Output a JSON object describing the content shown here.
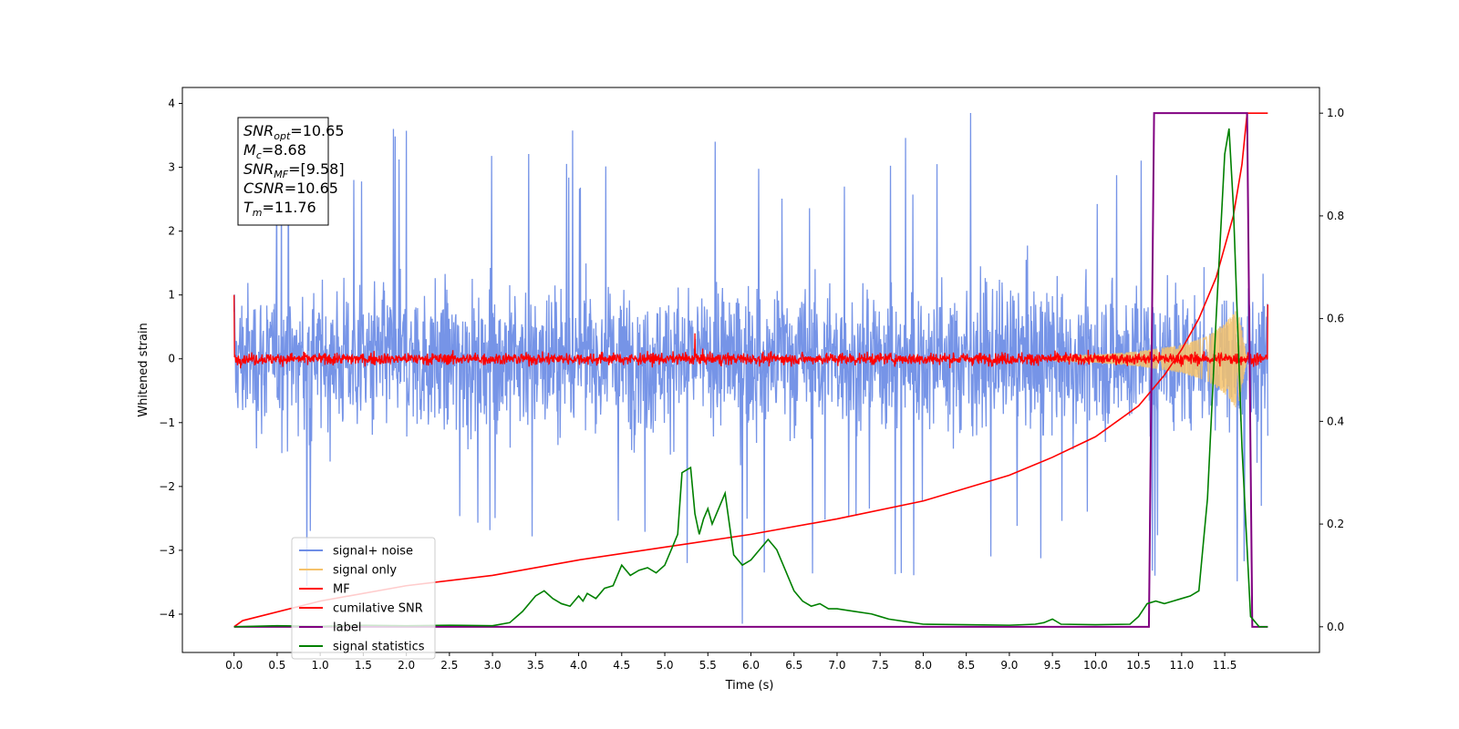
{
  "chart_data": {
    "type": "line",
    "xlabel": "Time (s)",
    "ylabel": "Whitened strain",
    "xlim": [
      -0.6,
      12.6
    ],
    "ylim": [
      -4.6,
      4.25
    ],
    "y2lim": [
      -0.05,
      1.05
    ],
    "x_ticks": [
      "0.0",
      "0.5",
      "1.0",
      "1.5",
      "2.0",
      "2.5",
      "3.0",
      "3.5",
      "4.0",
      "4.5",
      "5.0",
      "5.5",
      "6.0",
      "6.5",
      "7.0",
      "7.5",
      "8.0",
      "8.5",
      "9.0",
      "9.5",
      "10.0",
      "10.5",
      "11.0",
      "11.5"
    ],
    "y_ticks": [
      "4",
      "3",
      "2",
      "1",
      "0",
      "−1",
      "−2",
      "−3",
      "−4"
    ],
    "y2_ticks": [
      "1.0",
      "0.8",
      "0.6",
      "0.4",
      "0.2",
      "0.0"
    ],
    "info_box": [
      {
        "main": "SNR",
        "sub": "opt",
        "value": "=10.65"
      },
      {
        "main": "M",
        "sub": "c",
        "value": "=8.68"
      },
      {
        "main": "SNR",
        "sub": "MF",
        "value": "=[9.58]"
      },
      {
        "main": "CSNR",
        "sub": "",
        "value": "=10.65"
      },
      {
        "main": "T",
        "sub": "m",
        "value": "=11.76"
      }
    ],
    "legend_position": "lower-left",
    "series": [
      {
        "name": "signal+ noise",
        "color": "#6f8ee6",
        "description": "noise amplitude approx ±1.5 with spikes up to 3.85 and down to -4.15, t = 0 to 12"
      },
      {
        "name": "signal only",
        "color": "#f5c26b",
        "chirp_envelope": [
          [
            9.5,
            0.03
          ],
          [
            10.0,
            0.06
          ],
          [
            10.5,
            0.12
          ],
          [
            11.0,
            0.22
          ],
          [
            11.3,
            0.35
          ],
          [
            11.5,
            0.55
          ],
          [
            11.65,
            0.8
          ],
          [
            11.76,
            0.0
          ]
        ]
      },
      {
        "name": "MF",
        "color": "#ff0000",
        "baseline": 0.0,
        "noise_amplitude": 0.12,
        "start_value": 1.0,
        "end_value": 0.85
      },
      {
        "name": "cumilative SNR",
        "color": "#ff0000",
        "axis": "right",
        "x": [
          0.0,
          0.1,
          1.0,
          2.0,
          3.0,
          4.0,
          5.0,
          6.0,
          7.0,
          8.0,
          8.5,
          9.0,
          9.5,
          10.0,
          10.5,
          10.8,
          11.0,
          11.2,
          11.4,
          11.6,
          11.7,
          11.76,
          12.0
        ],
        "values": [
          0.0,
          0.012,
          0.05,
          0.08,
          0.1,
          0.13,
          0.155,
          0.18,
          0.21,
          0.245,
          0.27,
          0.295,
          0.33,
          0.37,
          0.43,
          0.49,
          0.54,
          0.6,
          0.68,
          0.8,
          0.9,
          1.0,
          1.0
        ]
      },
      {
        "name": "label",
        "color": "#800080",
        "axis": "right",
        "x": [
          0.0,
          10.62,
          10.68,
          11.76,
          11.82,
          12.0
        ],
        "values": [
          0.0,
          0.0,
          1.0,
          1.0,
          0.0,
          0.0
        ]
      },
      {
        "name": "signal statistics",
        "color": "#008000",
        "axis": "right",
        "x": [
          0.0,
          0.5,
          1.0,
          1.5,
          2.0,
          2.5,
          3.0,
          3.2,
          3.35,
          3.5,
          3.6,
          3.7,
          3.8,
          3.9,
          4.0,
          4.05,
          4.1,
          4.2,
          4.3,
          4.4,
          4.5,
          4.6,
          4.7,
          4.8,
          4.9,
          5.0,
          5.1,
          5.15,
          5.2,
          5.3,
          5.35,
          5.4,
          5.45,
          5.5,
          5.55,
          5.6,
          5.7,
          5.75,
          5.8,
          5.9,
          6.0,
          6.1,
          6.2,
          6.3,
          6.4,
          6.5,
          6.6,
          6.7,
          6.8,
          6.9,
          7.0,
          7.2,
          7.4,
          7.5,
          7.6,
          7.8,
          8.0,
          8.5,
          9.0,
          9.3,
          9.4,
          9.5,
          9.6,
          10.0,
          10.4,
          10.5,
          10.6,
          10.7,
          10.8,
          10.9,
          11.0,
          11.1,
          11.2,
          11.3,
          11.4,
          11.5,
          11.55,
          11.6,
          11.7,
          11.8,
          11.9,
          12.0
        ],
        "values": [
          0.0,
          0.002,
          0.001,
          0.003,
          0.002,
          0.003,
          0.002,
          0.008,
          0.03,
          0.06,
          0.07,
          0.055,
          0.045,
          0.04,
          0.06,
          0.05,
          0.065,
          0.055,
          0.075,
          0.08,
          0.12,
          0.1,
          0.11,
          0.115,
          0.105,
          0.12,
          0.16,
          0.18,
          0.3,
          0.31,
          0.22,
          0.18,
          0.21,
          0.23,
          0.2,
          0.22,
          0.26,
          0.2,
          0.14,
          0.12,
          0.13,
          0.15,
          0.17,
          0.15,
          0.11,
          0.07,
          0.05,
          0.04,
          0.045,
          0.035,
          0.035,
          0.03,
          0.025,
          0.02,
          0.015,
          0.01,
          0.005,
          0.004,
          0.003,
          0.005,
          0.008,
          0.015,
          0.005,
          0.004,
          0.005,
          0.02,
          0.045,
          0.05,
          0.045,
          0.05,
          0.055,
          0.06,
          0.07,
          0.25,
          0.6,
          0.92,
          0.97,
          0.82,
          0.35,
          0.02,
          0.0,
          0.0
        ]
      }
    ]
  }
}
